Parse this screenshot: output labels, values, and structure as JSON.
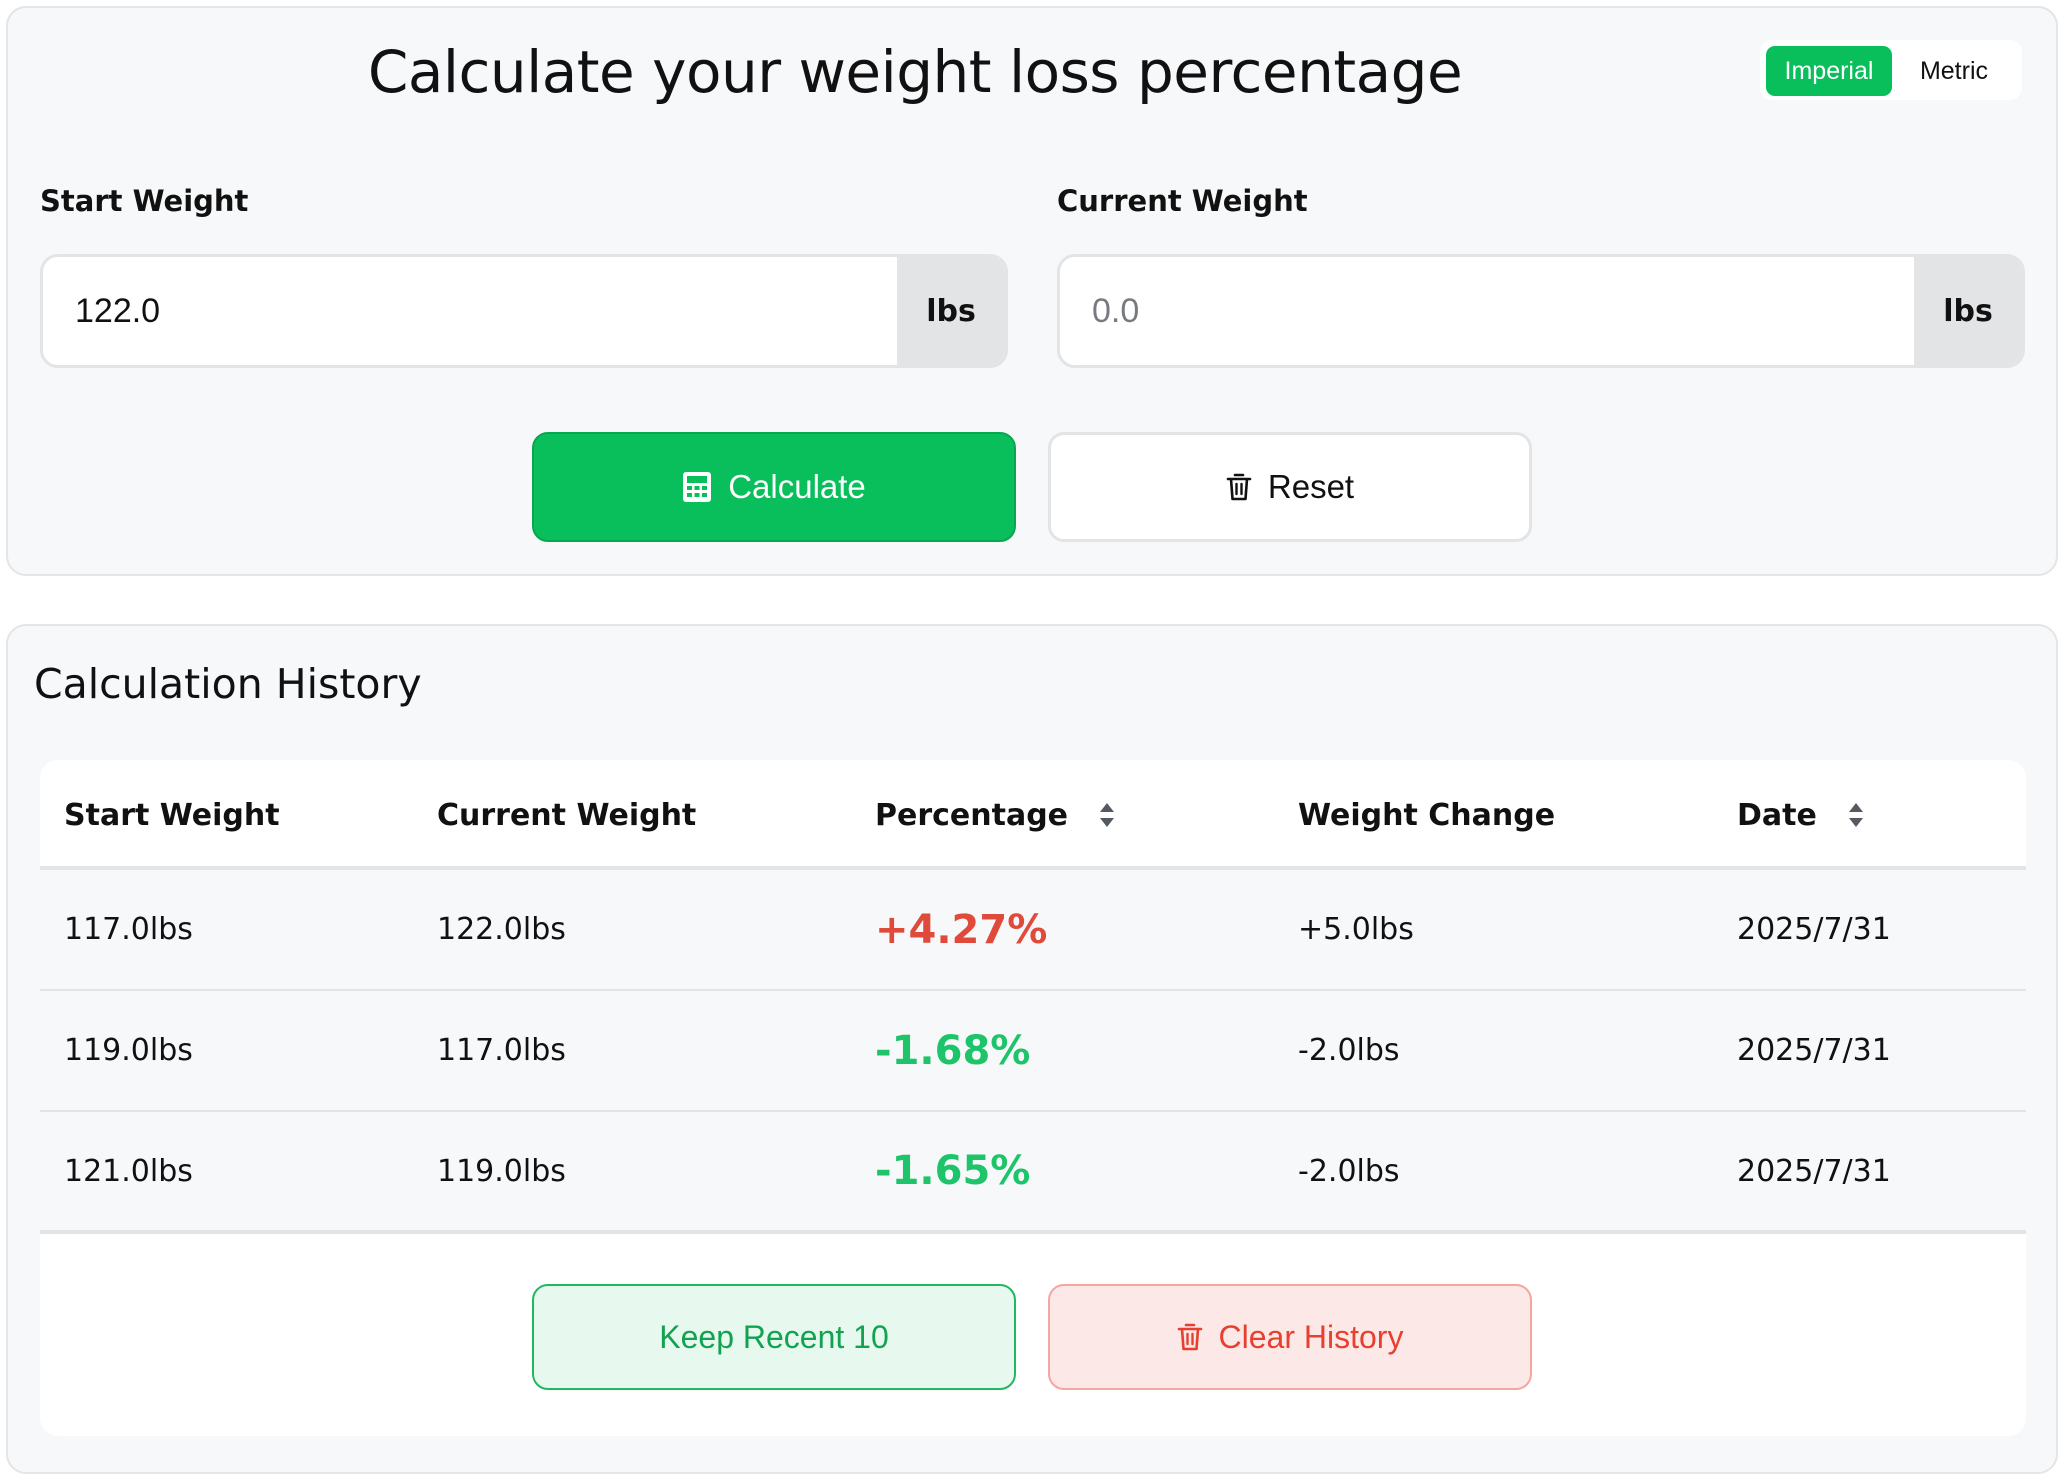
{
  "calculator": {
    "title": "Calculate your weight loss percentage",
    "units": {
      "imperial": "Imperial",
      "metric": "Metric",
      "selected": "Imperial"
    },
    "start_weight": {
      "label": "Start Weight",
      "value": "122.0",
      "placeholder": "0.0",
      "unit": "lbs"
    },
    "current_weight": {
      "label": "Current Weight",
      "value": "",
      "placeholder": "0.0",
      "unit": "lbs"
    },
    "calculate_label": "Calculate",
    "reset_label": "Reset",
    "icons": {
      "calculate": "calculator-icon",
      "reset": "trash-icon"
    }
  },
  "history": {
    "title": "Calculation History",
    "columns": {
      "start_weight": "Start Weight",
      "current_weight": "Current Weight",
      "percentage": "Percentage",
      "weight_change": "Weight Change",
      "date": "Date"
    },
    "rows": [
      {
        "start": "117.0lbs",
        "current": "122.0lbs",
        "percentage": "+4.27%",
        "change": "+5.0lbs",
        "date": "2025/7/31"
      },
      {
        "start": "119.0lbs",
        "current": "117.0lbs",
        "percentage": "-1.68%",
        "change": "-2.0lbs",
        "date": "2025/7/31"
      },
      {
        "start": "121.0lbs",
        "current": "119.0lbs",
        "percentage": "-1.65%",
        "change": "-2.0lbs",
        "date": "2025/7/31"
      }
    ],
    "keep_recent_label": "Keep Recent 10",
    "clear_label": "Clear History"
  },
  "colors": {
    "accent_green": "#08bf5c",
    "increase_red": "#e04a3a",
    "decrease_green": "#1ec46a",
    "clear_red": "#e8402f"
  }
}
